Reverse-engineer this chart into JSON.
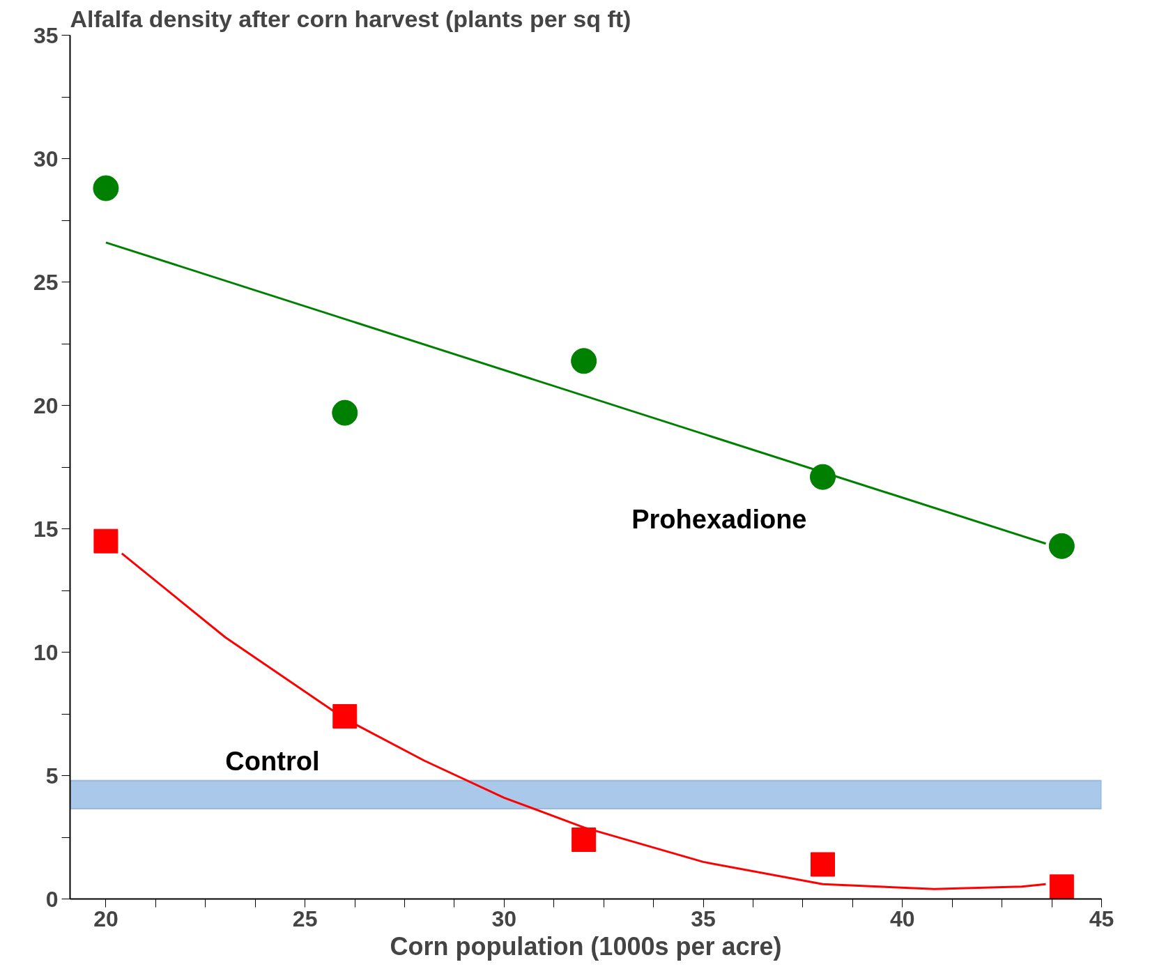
{
  "chart_data": {
    "type": "scatter",
    "title": "Alfalfa density after corn harvest (plants per sq ft)",
    "xlabel": "Corn population (1000s per acre)",
    "series": [
      {
        "name": "Prohexadione",
        "color": "#008000",
        "marker": "circle",
        "x": [
          20,
          26,
          32,
          38,
          44
        ],
        "values": [
          28.8,
          19.7,
          21.8,
          17.1,
          14.3
        ]
      },
      {
        "type": "line",
        "color": "#008000",
        "x": [
          20,
          43.6
        ],
        "values": [
          26.6,
          14.4
        ]
      },
      {
        "name": "Control",
        "color": "#ff0000",
        "marker": "square",
        "x": [
          20,
          26,
          32,
          38,
          44
        ],
        "values": [
          14.5,
          7.4,
          2.4,
          1.4,
          0.5
        ]
      },
      {
        "type": "line",
        "color": "#ff0000",
        "x": [
          20.4,
          23,
          26,
          28,
          30,
          32,
          35,
          38,
          40.8,
          43,
          43.6
        ],
        "values": [
          14.0,
          10.6,
          7.3,
          5.6,
          4.1,
          2.9,
          1.5,
          0.6,
          0.4,
          0.5,
          0.6
        ]
      }
    ],
    "bands": [
      {
        "axis": "y",
        "from": 3.65,
        "to": 4.8,
        "color": "#a9c8ea"
      }
    ],
    "xlim": [
      19.1,
      45
    ],
    "ylim": [
      0,
      35
    ],
    "xticks": [
      20,
      {
        "value": 21.25,
        "label": null
      },
      {
        "value": 22.5,
        "label": null
      },
      {
        "value": 23.75,
        "label": null
      },
      25,
      {
        "value": 26.25,
        "label": null
      },
      {
        "value": 27.5,
        "label": null
      },
      {
        "value": 28.75,
        "label": null
      },
      30,
      {
        "value": 31.25,
        "label": null
      },
      {
        "value": 32.5,
        "label": null
      },
      {
        "value": 33.75,
        "label": null
      },
      35,
      {
        "value": 36.25,
        "label": null
      },
      {
        "value": 37.5,
        "label": null
      },
      {
        "value": 38.75,
        "label": null
      },
      40,
      {
        "value": 41.25,
        "label": null
      },
      {
        "value": 42.5,
        "label": null
      },
      {
        "value": 43.75,
        "label": null
      },
      45
    ],
    "yticks": [
      0,
      {
        "value": 2.5,
        "label": null
      },
      5,
      {
        "value": 7.5,
        "label": null
      },
      10,
      {
        "value": 12.5,
        "label": null
      },
      15,
      {
        "value": 17.5,
        "label": null
      },
      20,
      {
        "value": 22.5,
        "label": null
      },
      25,
      {
        "value": 27.5,
        "label": null
      },
      30,
      {
        "value": 32.5,
        "label": null
      },
      35
    ],
    "grid": false
  }
}
